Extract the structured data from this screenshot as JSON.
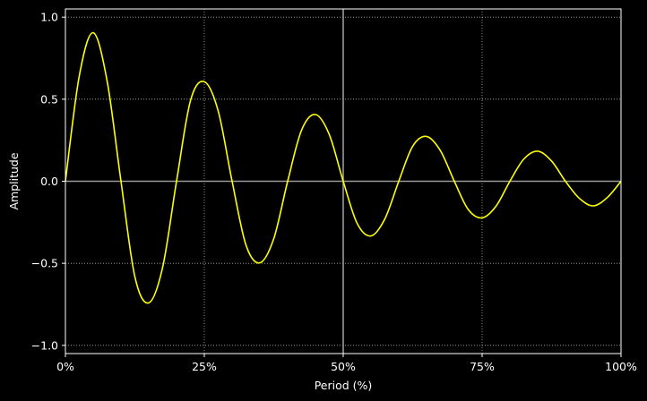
{
  "chart_data": {
    "type": "line",
    "xlabel": "Period (%)",
    "ylabel": "Amplitude",
    "xlim": [
      0,
      100
    ],
    "ylim": [
      -1.05,
      1.05
    ],
    "x_ticks": [
      0,
      25,
      50,
      75,
      100
    ],
    "x_tick_labels": [
      "0%",
      "25%",
      "50%",
      "75%",
      "100%"
    ],
    "y_ticks": [
      -1.0,
      -0.5,
      0.0,
      0.5,
      1.0
    ],
    "y_tick_labels": [
      "−1.0",
      "−0.5",
      "0.0",
      "0.5",
      "1.0"
    ],
    "grid": true,
    "grid_style": "dotted",
    "reference_lines": {
      "y": 0,
      "x": 50
    },
    "series": [
      {
        "x": [
          0,
          2.5,
          5,
          7.5,
          10,
          12.5,
          15,
          17.5,
          20,
          22.5,
          25,
          27.5,
          30,
          32.5,
          35,
          37.5,
          40,
          42.5,
          45,
          47.5,
          50,
          52.5,
          55,
          57.5,
          60,
          62.5,
          65,
          67.5,
          70,
          72.5,
          75,
          77.5,
          80,
          82.5,
          85,
          87.5,
          90,
          92.5,
          95,
          97.5,
          100
        ],
        "values": [
          0,
          0.643,
          0.905,
          0.612,
          0,
          -0.582,
          -0.741,
          -0.524,
          0,
          0.49,
          0.607,
          0.428,
          0,
          -0.389,
          -0.497,
          -0.35,
          0,
          0.311,
          0.407,
          0.284,
          0,
          -0.256,
          -0.333,
          -0.229,
          0,
          0.213,
          0.273,
          0.186,
          0,
          -0.172,
          -0.223,
          -0.152,
          0,
          0.135,
          0.183,
          0.123,
          0,
          -0.104,
          -0.15,
          -0.1,
          0
        ]
      }
    ],
    "colors": {
      "background": "#000000",
      "axes": "#ffffff",
      "grid": "#b0b0b0",
      "reference": "#9a9a9a",
      "line": "#ffff00"
    }
  }
}
